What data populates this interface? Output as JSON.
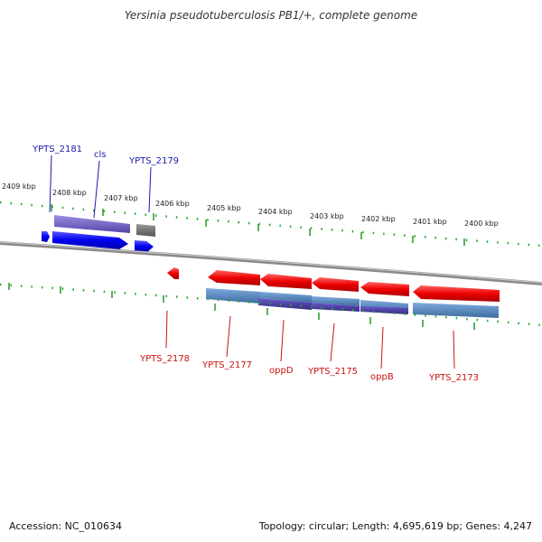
{
  "title": "Yersinia pseudotuberculosis PB1/+, complete genome",
  "footer": {
    "accession": "Accession: NC_010634",
    "summary": "Topology: circular; Length: 4,695,619 bp; Genes: 4,247"
  },
  "scale_labels": [
    "2409 kbp",
    "2408 kbp",
    "2407 kbp",
    "2406 kbp",
    "2405 kbp",
    "2404 kbp",
    "2403 kbp",
    "2402 kbp",
    "2401 kbp",
    "2400 kbp"
  ],
  "genes_top": [
    {
      "label": "YPTS_2181"
    },
    {
      "label": "cls"
    },
    {
      "label": "YPTS_2179"
    }
  ],
  "genes_bottom": [
    {
      "label": "YPTS_2178"
    },
    {
      "label": "YPTS_2177"
    },
    {
      "label": "oppD"
    },
    {
      "label": "YPTS_2175"
    },
    {
      "label": "oppB"
    },
    {
      "label": "YPTS_2173"
    }
  ],
  "colors": {
    "forward_gene": "#0000ee",
    "reverse_gene": "#ee0000",
    "forward_label": "#1a1aaa",
    "reverse_label": "#cc1111",
    "ticks": "#22aa22",
    "backbone": "#888888"
  }
}
